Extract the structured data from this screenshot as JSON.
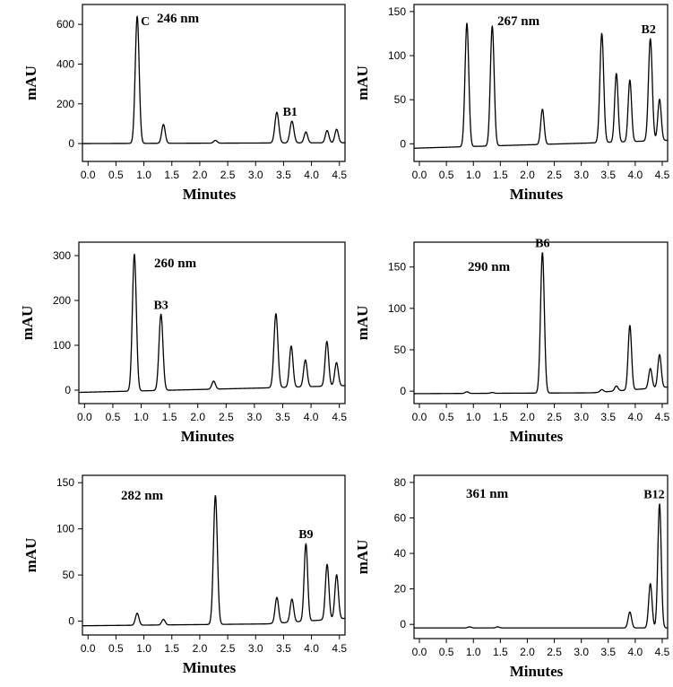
{
  "chart_data": [
    {
      "type": "line",
      "title": "246 nm",
      "xlabel": "Minutes",
      "ylabel": "mAU",
      "xlim": [
        -0.1,
        4.6
      ],
      "ylim": [
        -90,
        700
      ],
      "xticks": [
        "0.0",
        "0.5",
        "1.0",
        "1.5",
        "2.0",
        "2.5",
        "3.0",
        "3.5",
        "4.0",
        "4.5"
      ],
      "yticks": [
        "0",
        "200",
        "400",
        "600"
      ],
      "baseline": [
        [
          -0.1,
          0
        ],
        [
          4.6,
          4
        ]
      ],
      "peaks": [
        {
          "rt": 0.88,
          "height": 640,
          "label": "C"
        },
        {
          "rt": 1.35,
          "height": 95,
          "label": ""
        },
        {
          "rt": 2.28,
          "height": 14,
          "label": ""
        },
        {
          "rt": 3.38,
          "height": 155,
          "label": ""
        },
        {
          "rt": 3.65,
          "height": 110,
          "label": "B1"
        },
        {
          "rt": 3.9,
          "height": 55,
          "label": ""
        },
        {
          "rt": 4.28,
          "height": 62,
          "label": ""
        },
        {
          "rt": 4.45,
          "height": 68,
          "label": ""
        }
      ]
    },
    {
      "type": "line",
      "title": "267 nm",
      "xlabel": "Minutes",
      "ylabel": "mAU",
      "xlim": [
        -0.1,
        4.6
      ],
      "ylim": [
        -20,
        158
      ],
      "xticks": [
        "0.0",
        "0.5",
        "1.0",
        "1.5",
        "2.0",
        "2.5",
        "3.0",
        "3.5",
        "4.0",
        "4.5"
      ],
      "yticks": [
        "0",
        "50",
        "100",
        "150"
      ],
      "baseline": [
        [
          -0.1,
          -5
        ],
        [
          3.2,
          1
        ],
        [
          4.6,
          4
        ]
      ],
      "peaks": [
        {
          "rt": 0.88,
          "height": 140,
          "label": ""
        },
        {
          "rt": 1.35,
          "height": 136,
          "label": ""
        },
        {
          "rt": 2.28,
          "height": 40,
          "label": ""
        },
        {
          "rt": 3.38,
          "height": 124,
          "label": ""
        },
        {
          "rt": 3.65,
          "height": 78,
          "label": ""
        },
        {
          "rt": 3.9,
          "height": 70,
          "label": ""
        },
        {
          "rt": 4.28,
          "height": 116,
          "label": "B2"
        },
        {
          "rt": 4.45,
          "height": 47,
          "label": ""
        }
      ]
    },
    {
      "type": "line",
      "title": "260 nm",
      "xlabel": "Minutes",
      "ylabel": "mAU",
      "xlim": [
        -0.1,
        4.6
      ],
      "ylim": [
        -30,
        330
      ],
      "xticks": [
        "0.0",
        "0.5",
        "1.0",
        "1.5",
        "2.0",
        "2.5",
        "3.0",
        "3.5",
        "4.0",
        "4.5"
      ],
      "yticks": [
        "0",
        "100",
        "200",
        "300"
      ],
      "baseline": [
        [
          -0.1,
          -5
        ],
        [
          3.2,
          5
        ],
        [
          4.6,
          10
        ]
      ],
      "peaks": [
        {
          "rt": 0.88,
          "height": 305,
          "label": ""
        },
        {
          "rt": 1.35,
          "height": 170,
          "label": "B3"
        },
        {
          "rt": 2.28,
          "height": 18,
          "label": ""
        },
        {
          "rt": 3.38,
          "height": 165,
          "label": ""
        },
        {
          "rt": 3.65,
          "height": 92,
          "label": ""
        },
        {
          "rt": 3.9,
          "height": 60,
          "label": ""
        },
        {
          "rt": 4.28,
          "height": 100,
          "label": ""
        },
        {
          "rt": 4.45,
          "height": 52,
          "label": ""
        }
      ]
    },
    {
      "type": "line",
      "title": "290 nm",
      "xlabel": "Minutes",
      "ylabel": "mAU",
      "xlim": [
        -0.1,
        4.6
      ],
      "ylim": [
        -15,
        180
      ],
      "xticks": [
        "0.0",
        "0.5",
        "1.0",
        "1.5",
        "2.0",
        "2.5",
        "3.0",
        "3.5",
        "4.0",
        "4.5"
      ],
      "yticks": [
        "0",
        "50",
        "100",
        "150"
      ],
      "baseline": [
        [
          -0.1,
          -3
        ],
        [
          3.2,
          -2
        ],
        [
          4.6,
          5
        ]
      ],
      "peaks": [
        {
          "rt": 0.88,
          "height": 2,
          "label": ""
        },
        {
          "rt": 1.35,
          "height": 1,
          "label": ""
        },
        {
          "rt": 2.28,
          "height": 170,
          "label": "B6"
        },
        {
          "rt": 3.38,
          "height": 3,
          "label": ""
        },
        {
          "rt": 3.65,
          "height": 6,
          "label": ""
        },
        {
          "rt": 3.9,
          "height": 78,
          "label": ""
        },
        {
          "rt": 4.28,
          "height": 24,
          "label": ""
        },
        {
          "rt": 4.45,
          "height": 40,
          "label": ""
        }
      ]
    },
    {
      "type": "line",
      "title": "282 nm",
      "xlabel": "Minutes",
      "ylabel": "mAU",
      "xlim": [
        -0.1,
        4.6
      ],
      "ylim": [
        -15,
        158
      ],
      "xticks": [
        "0.0",
        "0.5",
        "1.0",
        "1.5",
        "2.0",
        "2.5",
        "3.0",
        "3.5",
        "4.0",
        "4.5"
      ],
      "yticks": [
        "0",
        "50",
        "100",
        "150"
      ],
      "baseline": [
        [
          -0.1,
          -5
        ],
        [
          3.2,
          -3
        ],
        [
          4.6,
          3
        ]
      ],
      "peaks": [
        {
          "rt": 0.88,
          "height": 13,
          "label": ""
        },
        {
          "rt": 1.35,
          "height": 6,
          "label": ""
        },
        {
          "rt": 2.28,
          "height": 140,
          "label": ""
        },
        {
          "rt": 3.38,
          "height": 28,
          "label": ""
        },
        {
          "rt": 3.65,
          "height": 25,
          "label": ""
        },
        {
          "rt": 3.9,
          "height": 84,
          "label": "B9"
        },
        {
          "rt": 4.28,
          "height": 60,
          "label": ""
        },
        {
          "rt": 4.45,
          "height": 48,
          "label": ""
        }
      ]
    },
    {
      "type": "line",
      "title": "361 nm",
      "xlabel": "Minutes",
      "ylabel": "mAU",
      "xlim": [
        -0.1,
        4.6
      ],
      "ylim": [
        -8,
        84
      ],
      "xticks": [
        "0.0",
        "0.5",
        "1.0",
        "1.5",
        "2.0",
        "2.5",
        "3.0",
        "3.5",
        "4.0",
        "4.5"
      ],
      "yticks": [
        "0",
        "20",
        "40",
        "60",
        "80"
      ],
      "baseline": [
        [
          -0.1,
          -2
        ],
        [
          4.6,
          -2
        ]
      ],
      "peaks": [
        {
          "rt": 0.93,
          "height": 0.6,
          "label": ""
        },
        {
          "rt": 1.45,
          "height": 0.6,
          "label": ""
        },
        {
          "rt": 3.9,
          "height": 9,
          "label": ""
        },
        {
          "rt": 4.28,
          "height": 25,
          "label": ""
        },
        {
          "rt": 4.45,
          "height": 70,
          "label": "B12"
        }
      ]
    }
  ]
}
